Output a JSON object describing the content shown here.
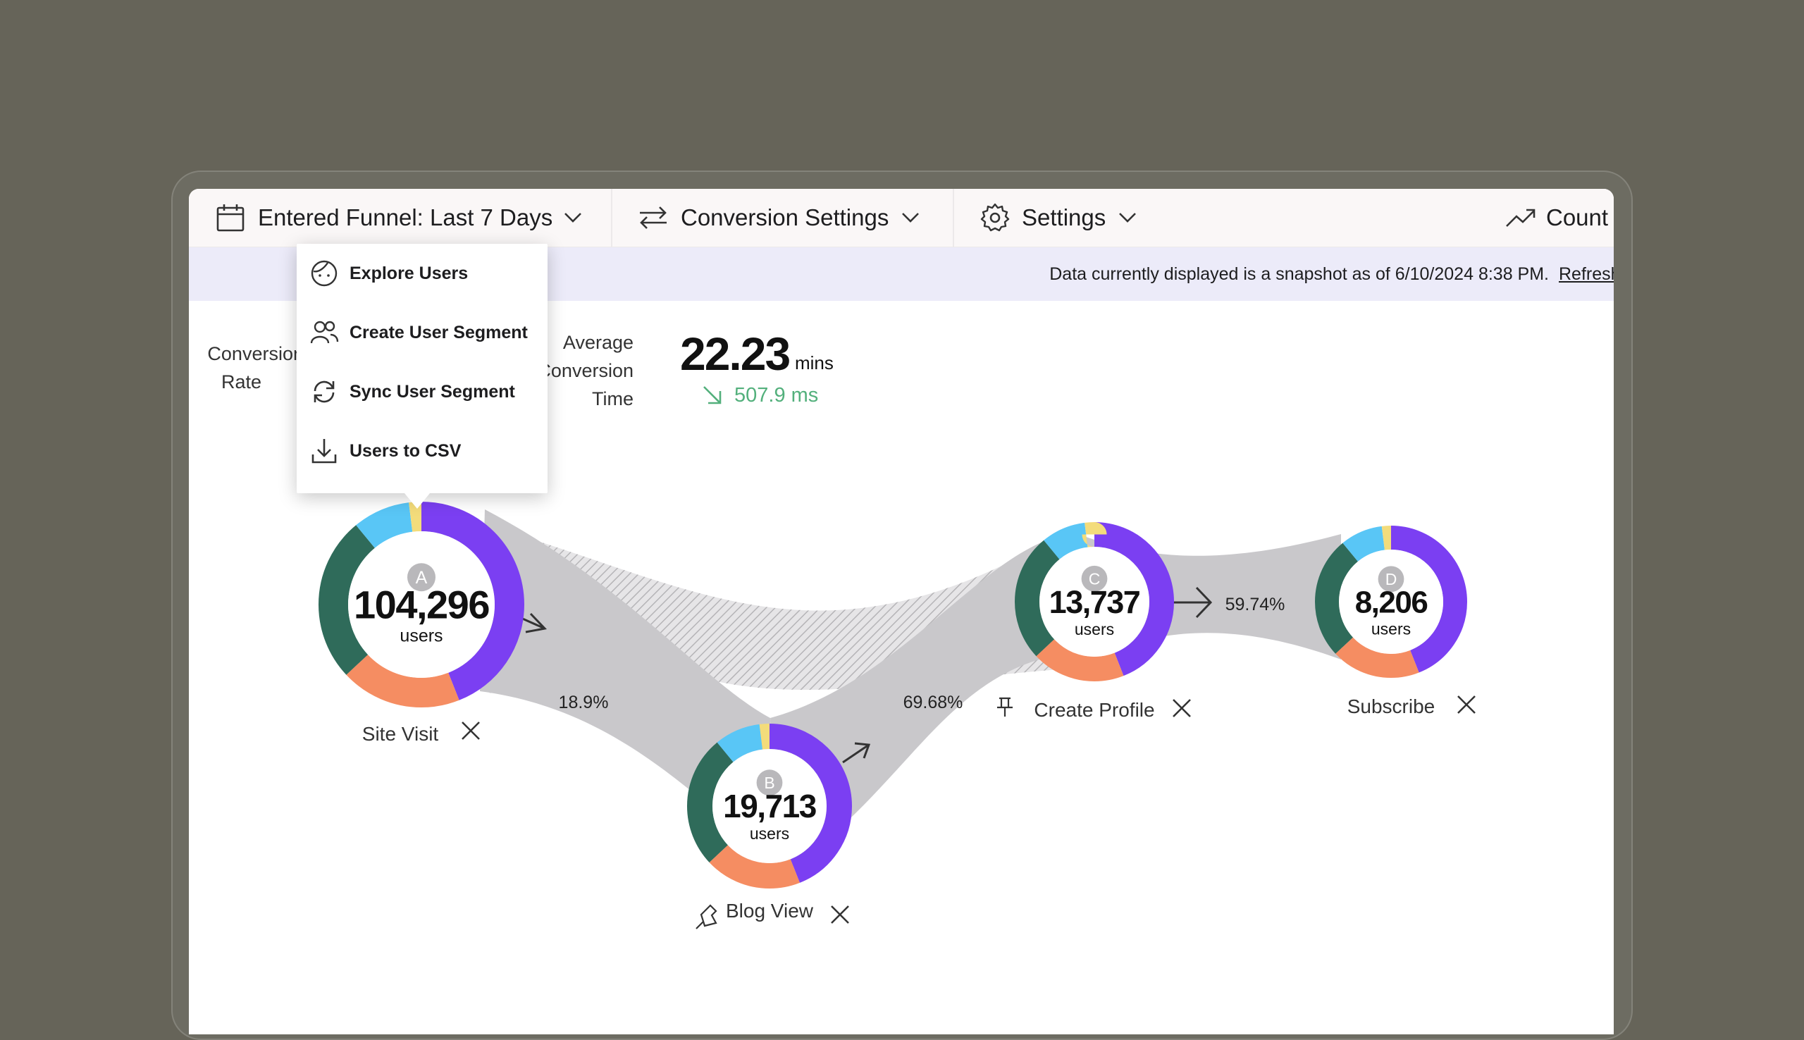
{
  "toolbar": {
    "date_filter": "Entered Funnel: Last 7 Days",
    "conversion_settings": "Conversion Settings",
    "settings": "Settings",
    "chart_toggle": "Count"
  },
  "banner": {
    "text": "Data currently displayed is a snapshot as of 6/10/2024 8:38 PM.",
    "link": "Refresh"
  },
  "metrics": {
    "conversion_rate_label_line1": "Conversion",
    "conversion_rate_label_line2": "Rate",
    "avg_time_label_line1": "Average",
    "avg_time_label_line2": "Conversion",
    "avg_time_label_line3": "Time",
    "avg_time_value": "22.23",
    "avg_time_unit": "mins",
    "avg_time_delta": "507.9 ms"
  },
  "context_menu": {
    "items": [
      {
        "label": "Explore Users",
        "icon": "user-face-icon"
      },
      {
        "label": "Create User Segment",
        "icon": "users-icon"
      },
      {
        "label": "Sync User Segment",
        "icon": "sync-icon"
      },
      {
        "label": "Users to CSV",
        "icon": "download-icon"
      }
    ]
  },
  "funnel": {
    "steps": [
      {
        "letter": "A",
        "count": "104,296",
        "unit": "users",
        "name": "Site Visit",
        "pinned": false
      },
      {
        "letter": "B",
        "count": "19,713",
        "unit": "users",
        "name": "Blog View",
        "pinned": false
      },
      {
        "letter": "C",
        "count": "13,737",
        "unit": "users",
        "name": "Create Profile",
        "pinned": true
      },
      {
        "letter": "D",
        "count": "8,206",
        "unit": "users",
        "name": "Subscribe",
        "pinned": false
      }
    ],
    "transitions": [
      "18.9%",
      "69.68%",
      "59.74%"
    ],
    "segment_colors": [
      "#7b3ff2",
      "#f58d62",
      "#2f6b5a",
      "#59c6f6",
      "#f3dc7b"
    ],
    "segment_shares": [
      0.44,
      0.19,
      0.26,
      0.09,
      0.02
    ]
  }
}
